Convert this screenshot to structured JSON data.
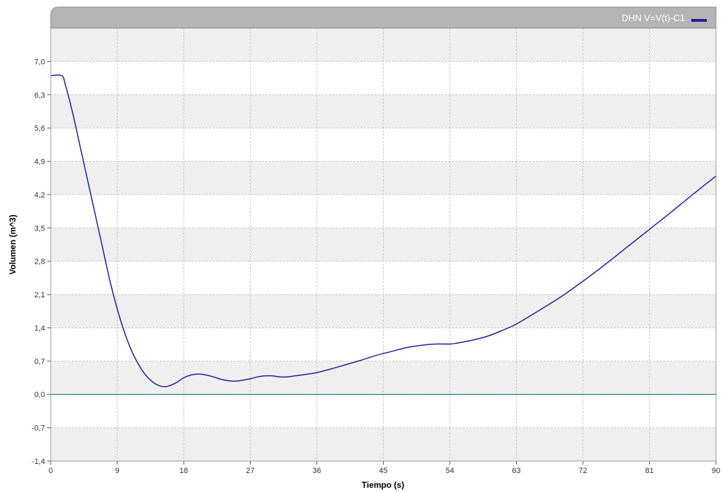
{
  "colors": {
    "header_bg": "#b4b4b4",
    "band_fill": "#efefef",
    "grid": "#c8c8c8",
    "series": "#1f1f9a",
    "zero_line": "#2e7d7d"
  },
  "chart_data": {
    "type": "line",
    "legend": {
      "label": "DHN V=V(t)-C1",
      "placement": "top-right"
    },
    "xlabel": "Tiempo (s)",
    "ylabel": "Volumen (m^3)",
    "xlim": [
      0,
      90
    ],
    "ylim": [
      -1.4,
      7.7
    ],
    "grid": true,
    "x_ticks": [
      0,
      9,
      18,
      27,
      36,
      45,
      54,
      63,
      72,
      81,
      90
    ],
    "x_tick_labels": [
      "0",
      "9",
      "18",
      "27",
      "36",
      "45",
      "54",
      "63",
      "72",
      "81",
      "90"
    ],
    "y_ticks": [
      -1.4,
      -0.7,
      0.0,
      0.7,
      1.4,
      2.1,
      2.8,
      3.5,
      4.2,
      4.9,
      5.6,
      6.3,
      7.0
    ],
    "y_tick_labels": [
      "-1,4",
      "-0,7",
      "0,0",
      "0,7",
      "1,4",
      "2,1",
      "2,8",
      "3,5",
      "4,2",
      "4,9",
      "5,6",
      "6,3",
      "7,0"
    ],
    "reference_line_y": 0.0,
    "series": [
      {
        "name": "DHN V=V(t)-C1",
        "x": [
          0,
          1.5,
          2,
          3,
          4,
          5,
          6,
          7,
          8,
          9,
          10,
          11,
          12,
          13,
          14,
          15,
          15.8,
          17,
          18,
          19,
          20,
          21,
          22,
          23,
          24,
          25,
          26,
          27,
          28,
          29,
          30,
          31,
          32,
          33,
          34,
          36,
          38,
          40,
          42,
          44,
          46,
          48,
          50,
          52,
          54,
          55,
          57,
          59,
          61,
          63,
          66,
          69,
          72,
          75,
          78,
          81,
          84,
          87,
          90
        ],
        "y": [
          6.7,
          6.7,
          6.5,
          5.9,
          5.2,
          4.5,
          3.8,
          3.1,
          2.4,
          1.8,
          1.3,
          0.9,
          0.6,
          0.38,
          0.24,
          0.17,
          0.17,
          0.25,
          0.35,
          0.41,
          0.43,
          0.41,
          0.37,
          0.32,
          0.29,
          0.28,
          0.3,
          0.33,
          0.37,
          0.39,
          0.39,
          0.37,
          0.37,
          0.39,
          0.41,
          0.46,
          0.54,
          0.63,
          0.72,
          0.82,
          0.9,
          0.98,
          1.03,
          1.06,
          1.06,
          1.08,
          1.14,
          1.22,
          1.34,
          1.48,
          1.76,
          2.05,
          2.38,
          2.73,
          3.1,
          3.47,
          3.84,
          4.22,
          4.59
        ]
      }
    ]
  }
}
